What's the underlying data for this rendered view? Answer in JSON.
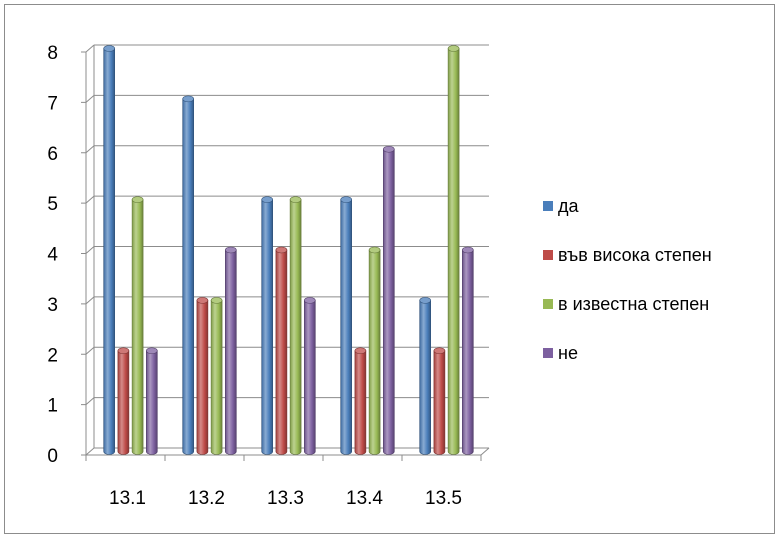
{
  "chart_data": {
    "type": "bar",
    "categories": [
      "13.1",
      "13.2",
      "13.3",
      "13.4",
      "13.5"
    ],
    "series": [
      {
        "name": "да",
        "color": "#4a7ebb",
        "values": [
          8,
          7,
          5,
          5,
          3
        ]
      },
      {
        "name": "във висока степен",
        "color": "#be4b48",
        "values": [
          2,
          3,
          4,
          2,
          2
        ]
      },
      {
        "name": "в известна степен",
        "color": "#98b954",
        "values": [
          5,
          3,
          5,
          4,
          8
        ]
      },
      {
        "name": "не",
        "color": "#7d60a0",
        "values": [
          2,
          4,
          3,
          6,
          4
        ]
      }
    ],
    "y_ticks": [
      "0",
      "1",
      "2",
      "3",
      "4",
      "5",
      "6",
      "7",
      "8"
    ],
    "ylim": [
      0,
      8
    ],
    "grid": true,
    "legend_position": "right",
    "style": "3d-cylinder"
  }
}
